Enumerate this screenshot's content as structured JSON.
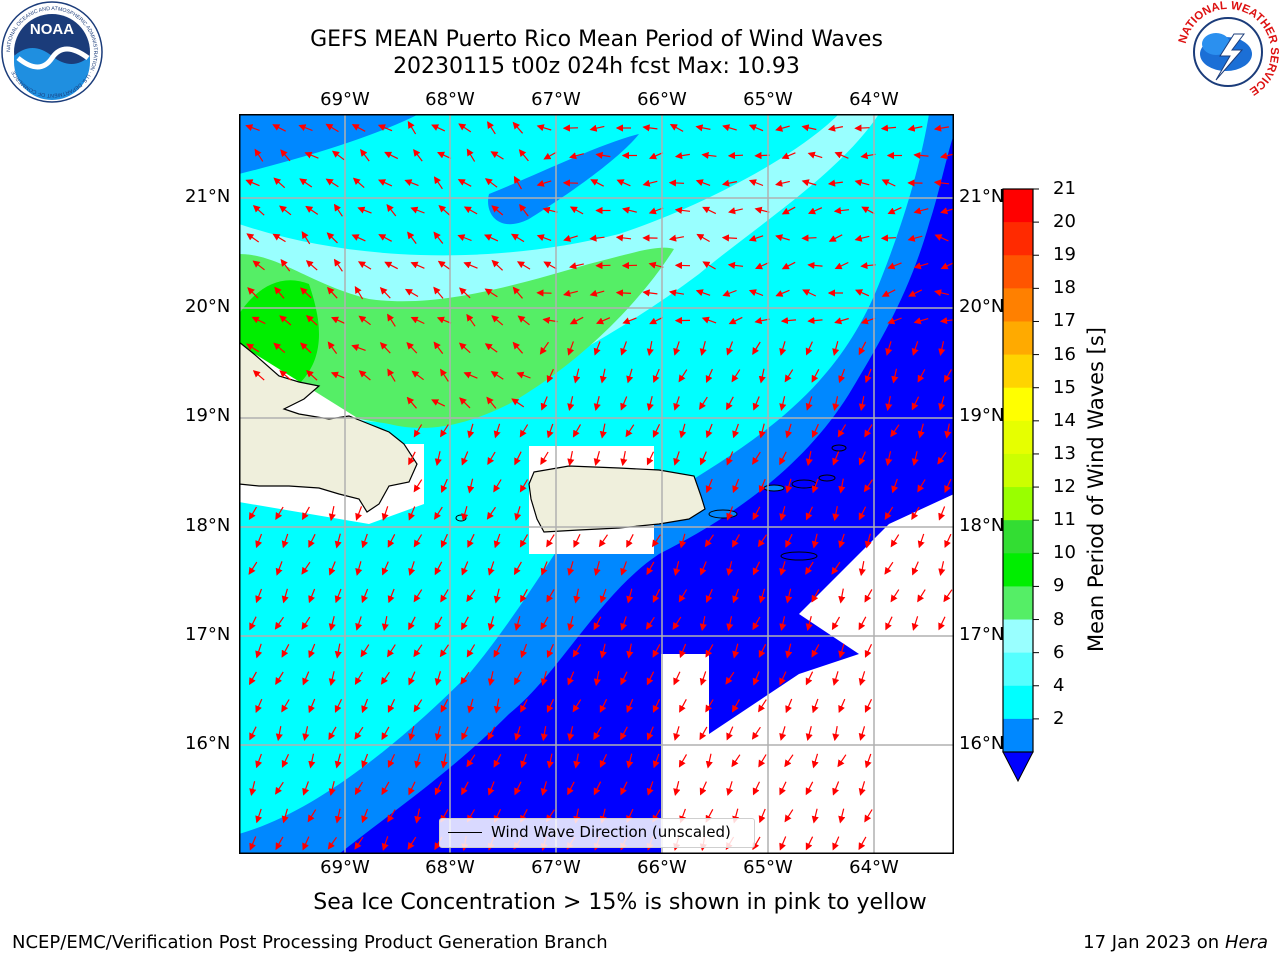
{
  "title_line1": "GEFS MEAN Puerto Rico Mean Period of Wind Waves",
  "title_line2": "20230115 t00z 024h fcst   Max: 10.93",
  "caption": "Sea Ice Concentration > 15% is shown in pink to yellow",
  "footer_left": "NCEP/EMC/Verification Post Processing Product Generation Branch",
  "footer_date": "17 Jan 2023 on ",
  "footer_machine": "Hera",
  "legend_label": "Wind Wave Direction (unscaled)",
  "colorbar": {
    "label": "Mean Period of Wind Waves [s]",
    "ticks": [
      "21",
      "20",
      "19",
      "18",
      "17",
      "16",
      "15",
      "14",
      "13",
      "12",
      "11",
      "10",
      "9",
      "8",
      "6",
      "4",
      "2"
    ],
    "colors": [
      "#ff0000",
      "#ff2a00",
      "#ff5500",
      "#ff8000",
      "#ffaa00",
      "#ffd400",
      "#ffff00",
      "#e6ff00",
      "#ccff00",
      "#99ff00",
      "#33dd33",
      "#00ee00",
      "#55ee66",
      "#99ffff",
      "#55ffff",
      "#00ffff",
      "#0088ff"
    ],
    "under_color": "#0000ff"
  },
  "map": {
    "lon_labels": [
      "69°W",
      "68°W",
      "67°W",
      "66°W",
      "65°W",
      "64°W"
    ],
    "lat_labels": [
      "21°N",
      "20°N",
      "19°N",
      "18°N",
      "17°N",
      "16°N"
    ],
    "land_color": "#efefdc",
    "arrow_color": "#ff0000"
  },
  "logos": {
    "noaa_text": "NOAA",
    "noaa_ring": "NATIONAL OCEANIC AND ATMOSPHERIC ADMINISTRATION · U.S. DEPARTMENT OF COMMERCE",
    "nws_ring": "NATIONAL WEATHER SERVICE"
  }
}
